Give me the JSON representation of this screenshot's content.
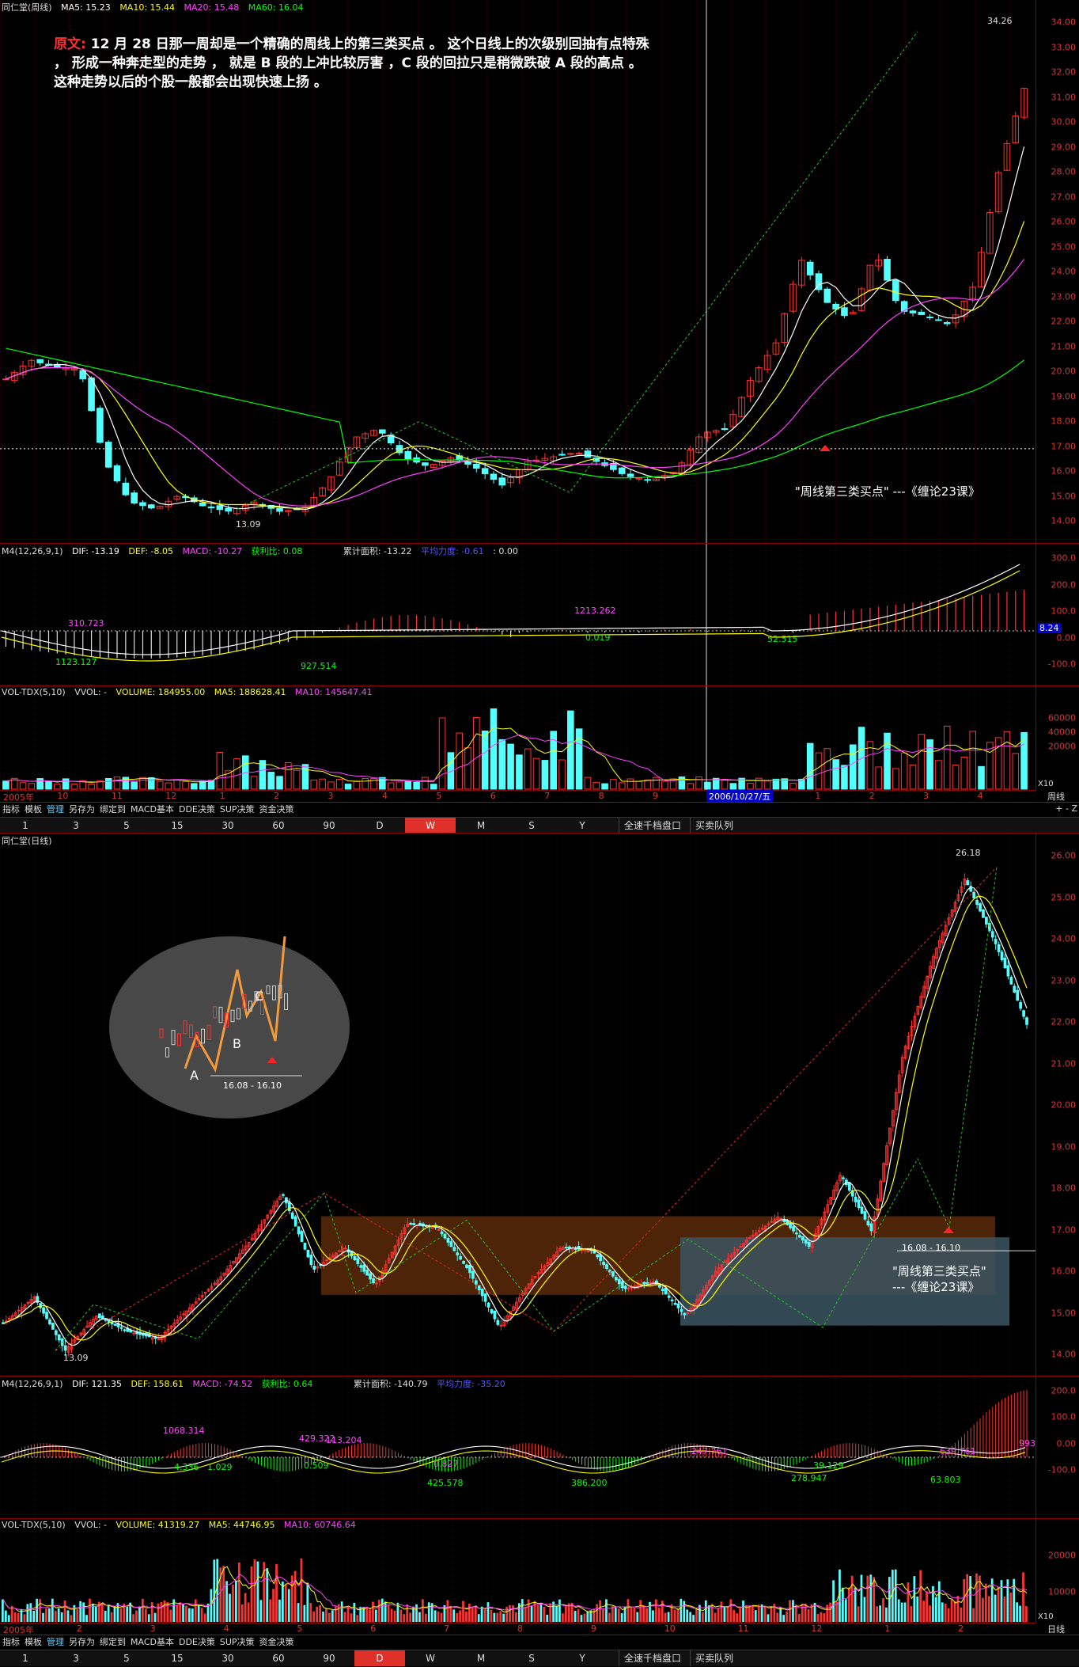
{
  "weekly": {
    "title": "同仁堂(周线)",
    "ma": [
      {
        "label": "MA5: 15.23",
        "color": "#ffffff"
      },
      {
        "label": "MA10: 15.44",
        "color": "#ffff00"
      },
      {
        "label": "MA20: 15.48",
        "color": "#ff40ff"
      },
      {
        "label": "MA60: 16.04",
        "color": "#00ff00"
      }
    ],
    "price_ticks": [
      "34.00",
      "33.00",
      "32.00",
      "31.00",
      "30.00",
      "29.00",
      "28.00",
      "27.00",
      "26.00",
      "25.00",
      "24.00",
      "23.00",
      "22.00",
      "21.00",
      "20.00",
      "19.00",
      "18.00",
      "17.00",
      "16.00",
      "15.00",
      "14.00"
    ],
    "high_label": "34.26",
    "low_label": "13.09",
    "note_lead": "原文:",
    "note_text": "12 月 28 日那一周却是一个精确的周线上的第三类买点 。 这个日线上的次级别回抽有点特殊 ，  形成一种奔走型的走势 ，  就是 B 段的上冲比较厉害 ，C 段的回拉只是稍微跌破 A 段的高点 。 这种走势以后的个股一般都会出现快速上扬 。",
    "annotation": "\"周线第三类买点\" ---《缠论23课》",
    "macd": {
      "params": "M4(12,26,9,1)",
      "dif": "DIF: -13.19",
      "def": "DEF: -8.05",
      "macd": "MACD: -10.27",
      "win": "获利比: 0.08",
      "area": "累计面积: -13.22",
      "force": "平均力度: -0.61",
      "tail": ": 0.00",
      "ticks": [
        "300.0",
        "200.0",
        "100.0",
        "0.00",
        "-100.0"
      ],
      "cur_value": "8.24",
      "labels": [
        "310.723",
        "1123.127",
        "927.514",
        "1213.262",
        "0.019",
        "52.515"
      ]
    },
    "vol": {
      "params": "VOL-TDX(5,10)",
      "vvol": "VVOL: -",
      "volume": "VOLUME: 184955.00",
      "ma5": "MA5: 188628.41",
      "ma10": "MA10: 145647.41",
      "ticks": [
        "60000",
        "40000",
        "20000"
      ],
      "unit": "X10"
    },
    "time_labels": [
      "2005年",
      "10",
      "11",
      "12",
      "1",
      "2",
      "3",
      "4",
      "5",
      "6",
      "7",
      "8",
      "9",
      "10",
      "12",
      "1",
      "2",
      "3",
      "4"
    ],
    "cursor_date": "2006/10/27/五",
    "period_label": "周线"
  },
  "daily": {
    "title": "同仁堂(日线)",
    "price_ticks": [
      "26.00",
      "25.00",
      "24.00",
      "23.00",
      "22.00",
      "21.00",
      "20.00",
      "19.00",
      "18.00",
      "17.00",
      "16.00",
      "15.00",
      "14.00"
    ],
    "high_label": "26.18",
    "low_label": "13.09",
    "inset": {
      "a": "A",
      "b": "B",
      "c": "C",
      "range": "16.08 - 16.10"
    },
    "range_label": "16.08 - 16.10",
    "annotation_l1": "\"周线第三类买点\"",
    "annotation_l2": "---《缠论23课》",
    "macd": {
      "params": "M4(12,26,9,1)",
      "dif": "DIF: 121.35",
      "def": "DEF: 158.61",
      "macd": "MACD: -74.52",
      "win": "获利比: 0.64",
      "area": "累计面积: -140.79",
      "force": "平均力度: -35.20",
      "ticks": [
        "200.0",
        "100.0",
        "0.00",
        "-100.0"
      ],
      "labels": [
        "1068.314",
        "4.336",
        "1.029",
        "429.322",
        "113.204",
        "0.509",
        "0.827",
        "425.578",
        "386.200",
        "247.761",
        "278.947",
        "39.129",
        "639.761",
        "63.803",
        "993"
      ]
    },
    "vol": {
      "params": "VOL-TDX(5,10)",
      "vvol": "VVOL: -",
      "volume": "VOLUME: 41319.27",
      "ma5": "MA5: 44746.95",
      "ma10": "MA10: 60746.64",
      "ticks": [
        "20000",
        "10000"
      ],
      "unit": "X10"
    },
    "time_labels": [
      "2005年",
      "2",
      "3",
      "4",
      "5",
      "6",
      "7",
      "8",
      "9",
      "10",
      "11",
      "12",
      "1",
      "2"
    ],
    "period_label": "日线"
  },
  "toolbar": [
    "指标",
    "模板",
    "管理",
    "另存为",
    "绑定到",
    "MACD基本",
    "DDE决策",
    "SUP决策",
    "资金决策"
  ],
  "toolbar_selected": "管理",
  "periods": [
    "1",
    "3",
    "5",
    "15",
    "30",
    "60",
    "90",
    "D",
    "W",
    "M",
    "S",
    "Y"
  ],
  "period_ext": [
    "全速千档盘口",
    "买卖队列"
  ],
  "right_buttons": "+ - Z",
  "colors": {
    "up": "#ff3232",
    "down": "#54ffff",
    "grid": "#8b0000",
    "ma5": "#ffffff",
    "ma10": "#ffff00",
    "ma20": "#ff40ff",
    "ma60": "#00ff00"
  }
}
